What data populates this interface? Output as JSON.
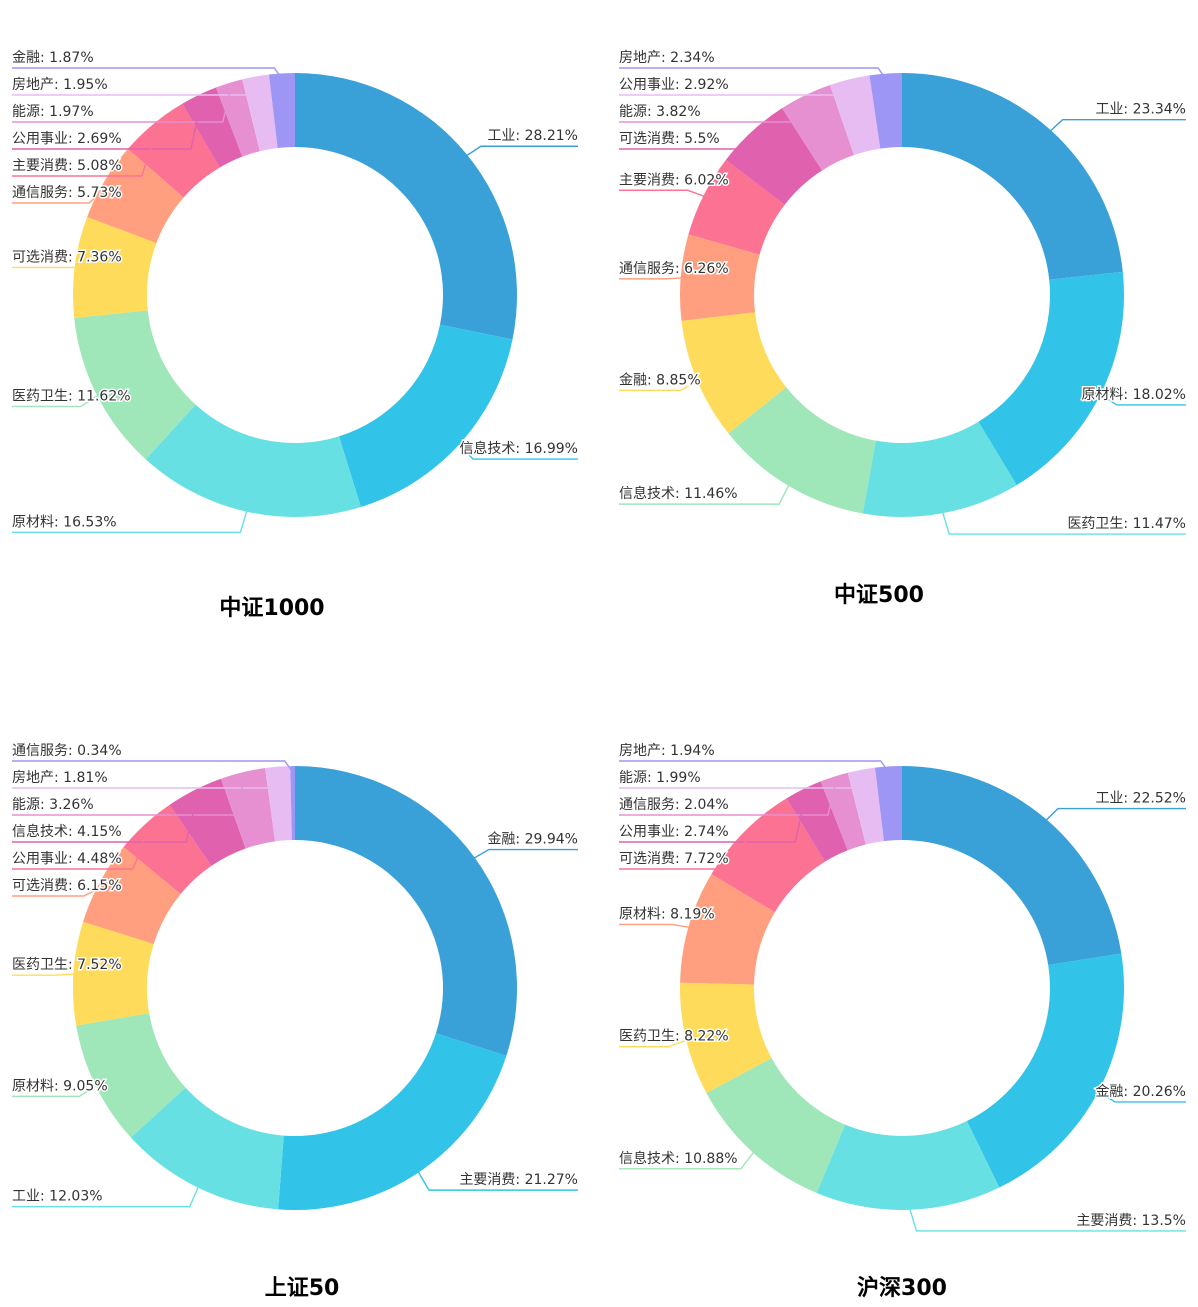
{
  "palette": [
    "#3aa0d8",
    "#32c3e8",
    "#67e0e3",
    "#9fe6b8",
    "#ffdb5c",
    "#ff9f7f",
    "#fb7293",
    "#e062ae",
    "#e690d1",
    "#e7bcf3",
    "#9d96f5"
  ],
  "chart_data": [
    {
      "type": "pie",
      "variant": "donut",
      "title": "中证1000",
      "start": "top",
      "direction": "clockwise",
      "slices": [
        {
          "name": "工业",
          "value": 28.21
        },
        {
          "name": "信息技术",
          "value": 16.99
        },
        {
          "name": "原材料",
          "value": 16.53
        },
        {
          "name": "医药卫生",
          "value": 11.62
        },
        {
          "name": "可选消费",
          "value": 7.36
        },
        {
          "name": "通信服务",
          "value": 5.73
        },
        {
          "name": "主要消费",
          "value": 5.08
        },
        {
          "name": "公用事业",
          "value": 2.69
        },
        {
          "name": "能源",
          "value": 1.97
        },
        {
          "name": "房地产",
          "value": 1.95
        },
        {
          "name": "金融",
          "value": 1.87
        }
      ]
    },
    {
      "type": "pie",
      "variant": "donut",
      "title": "中证500",
      "start": "top",
      "direction": "clockwise",
      "slices": [
        {
          "name": "工业",
          "value": 23.34
        },
        {
          "name": "原材料",
          "value": 18.02
        },
        {
          "name": "医药卫生",
          "value": 11.47
        },
        {
          "name": "信息技术",
          "value": 11.46
        },
        {
          "name": "金融",
          "value": 8.85
        },
        {
          "name": "通信服务",
          "value": 6.26
        },
        {
          "name": "主要消费",
          "value": 6.02
        },
        {
          "name": "可选消费",
          "value": 5.5
        },
        {
          "name": "能源",
          "value": 3.82
        },
        {
          "name": "公用事业",
          "value": 2.92
        },
        {
          "name": "房地产",
          "value": 2.34
        }
      ]
    },
    {
      "type": "pie",
      "variant": "donut",
      "title": "上证50",
      "start": "top",
      "direction": "clockwise",
      "slices": [
        {
          "name": "金融",
          "value": 29.94
        },
        {
          "name": "主要消费",
          "value": 21.27
        },
        {
          "name": "工业",
          "value": 12.03
        },
        {
          "name": "原材料",
          "value": 9.05
        },
        {
          "name": "医药卫生",
          "value": 7.52
        },
        {
          "name": "可选消费",
          "value": 6.15
        },
        {
          "name": "公用事业",
          "value": 4.48
        },
        {
          "name": "信息技术",
          "value": 4.15
        },
        {
          "name": "能源",
          "value": 3.26
        },
        {
          "name": "房地产",
          "value": 1.81
        },
        {
          "name": "通信服务",
          "value": 0.34
        }
      ]
    },
    {
      "type": "pie",
      "variant": "donut",
      "title": "沪深300",
      "start": "top",
      "direction": "clockwise",
      "slices": [
        {
          "name": "工业",
          "value": 22.52
        },
        {
          "name": "金融",
          "value": 20.26
        },
        {
          "name": "主要消费",
          "value": 13.5
        },
        {
          "name": "信息技术",
          "value": 10.88
        },
        {
          "name": "医药卫生",
          "value": 8.22
        },
        {
          "name": "原材料",
          "value": 8.19
        },
        {
          "name": "可选消费",
          "value": 7.72
        },
        {
          "name": "公用事业",
          "value": 2.74
        },
        {
          "name": "通信服务",
          "value": 2.04
        },
        {
          "name": "能源",
          "value": 1.99
        },
        {
          "name": "房地产",
          "value": 1.94
        }
      ]
    }
  ]
}
